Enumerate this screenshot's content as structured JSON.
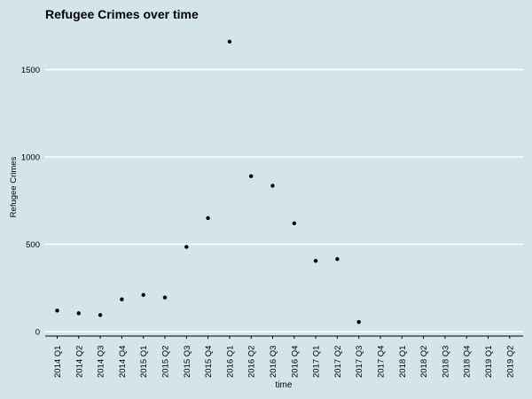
{
  "chart_data": {
    "type": "scatter",
    "title": "Refugee Crimes over time",
    "xlabel": "time",
    "ylabel": "Refugee Crimes",
    "categories": [
      "2014 Q1",
      "2014 Q2",
      "2014 Q3",
      "2014 Q4",
      "2015 Q1",
      "2015 Q2",
      "2015 Q3",
      "2015 Q4",
      "2016 Q1",
      "2016 Q2",
      "2016 Q3",
      "2016 Q4",
      "2017 Q1",
      "2017 Q2",
      "2017 Q3",
      "2017 Q4",
      "2018 Q1",
      "2018 Q2",
      "2018 Q3",
      "2018 Q4",
      "2019 Q1",
      "2019 Q2"
    ],
    "values": [
      120,
      105,
      95,
      185,
      210,
      195,
      485,
      650,
      1660,
      890,
      835,
      620,
      405,
      415,
      55,
      null,
      null,
      null,
      null,
      null,
      null,
      null
    ],
    "ylim": [
      0,
      1700
    ],
    "yticks": [
      0,
      500,
      1000,
      1500
    ],
    "ytick_labels": [
      "0",
      "500",
      "1000",
      "1500"
    ],
    "grid": "horizontal-major",
    "colors": {
      "background": "#d5e4eb",
      "gridline": "#ffffff",
      "point": "#000000",
      "axis": "#000000"
    }
  }
}
